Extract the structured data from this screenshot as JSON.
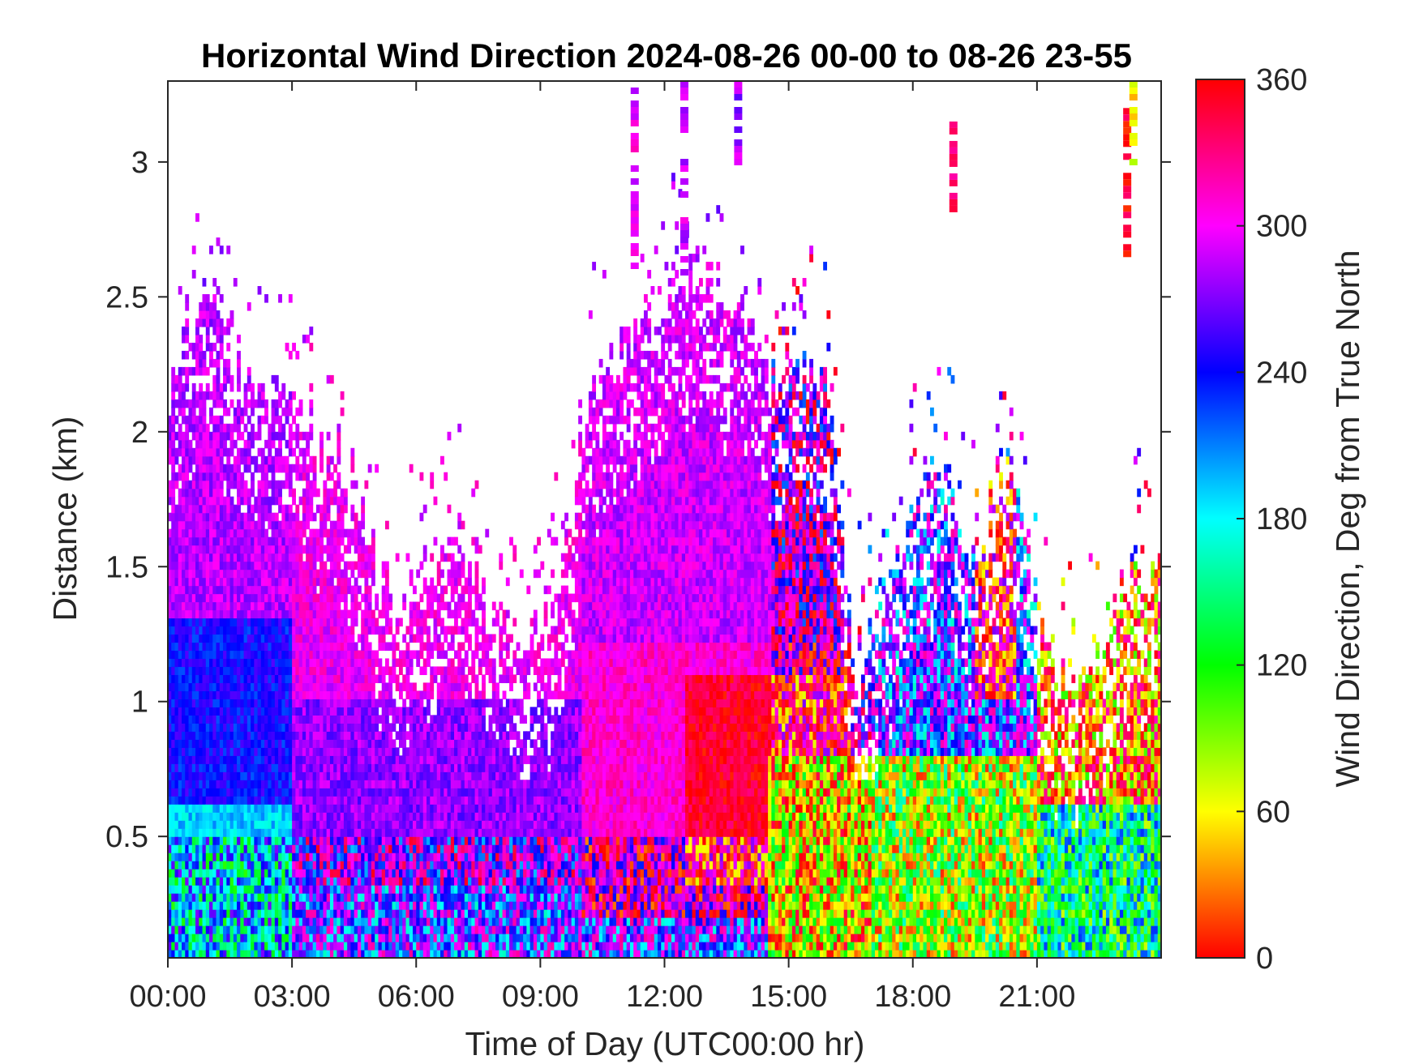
{
  "chart_data": {
    "type": "heatmap",
    "title": "Horizontal Wind Direction 2024-08-26 00-00 to 08-26 23-55",
    "xlabel": "Time of Day (UTC00:00 hr)",
    "ylabel": "Distance (km)",
    "x_ticks": [
      "00:00",
      "03:00",
      "06:00",
      "09:00",
      "12:00",
      "15:00",
      "18:00",
      "21:00"
    ],
    "y_ticks": [
      "0.5",
      "1",
      "1.5",
      "2",
      "2.5",
      "3"
    ],
    "xlim_hours": [
      0,
      24
    ],
    "ylim_km": [
      0.05,
      3.3
    ],
    "grid": false,
    "colorbar": {
      "label": "Wind Direction, Deg from True North",
      "ticks": [
        "0",
        "60",
        "120",
        "180",
        "240",
        "300",
        "360"
      ],
      "range": [
        0,
        360
      ],
      "placement": "right",
      "stops": [
        "#ff0000",
        "#ffff00",
        "#00ff00",
        "#00ffff",
        "#0000ff",
        "#ff00ff",
        "#ff0000"
      ]
    },
    "data_top_km": [
      {
        "hour": 0.0,
        "top": 2.2
      },
      {
        "hour": 0.5,
        "top": 2.4
      },
      {
        "hour": 1.0,
        "top": 2.5
      },
      {
        "hour": 1.5,
        "top": 2.3
      },
      {
        "hour": 2.0,
        "top": 2.2
      },
      {
        "hour": 2.5,
        "top": 2.1
      },
      {
        "hour": 3.0,
        "top": 2.05
      },
      {
        "hour": 3.5,
        "top": 2.0
      },
      {
        "hour": 4.0,
        "top": 1.95
      },
      {
        "hour": 4.5,
        "top": 1.8
      },
      {
        "hour": 5.0,
        "top": 1.5
      },
      {
        "hour": 5.5,
        "top": 1.3
      },
      {
        "hour": 6.0,
        "top": 1.4
      },
      {
        "hour": 6.5,
        "top": 1.5
      },
      {
        "hour": 7.0,
        "top": 1.6
      },
      {
        "hour": 7.5,
        "top": 1.4
      },
      {
        "hour": 8.0,
        "top": 1.3
      },
      {
        "hour": 8.5,
        "top": 1.2
      },
      {
        "hour": 9.0,
        "top": 1.3
      },
      {
        "hour": 9.5,
        "top": 1.4
      },
      {
        "hour": 10.0,
        "top": 2.1
      },
      {
        "hour": 10.5,
        "top": 2.25
      },
      {
        "hour": 11.0,
        "top": 2.3
      },
      {
        "hour": 11.5,
        "top": 2.45
      },
      {
        "hour": 12.0,
        "top": 2.5
      },
      {
        "hour": 12.5,
        "top": 2.6
      },
      {
        "hour": 13.0,
        "top": 2.55
      },
      {
        "hour": 13.5,
        "top": 2.45
      },
      {
        "hour": 14.0,
        "top": 2.35
      },
      {
        "hour": 14.5,
        "top": 2.25
      },
      {
        "hour": 15.0,
        "top": 2.2
      },
      {
        "hour": 15.5,
        "top": 2.2
      },
      {
        "hour": 16.0,
        "top": 2.15
      },
      {
        "hour": 16.5,
        "top": 1.2
      },
      {
        "hour": 17.0,
        "top": 1.2
      },
      {
        "hour": 17.5,
        "top": 1.5
      },
      {
        "hour": 18.0,
        "top": 1.7
      },
      {
        "hour": 18.5,
        "top": 1.85
      },
      {
        "hour": 19.0,
        "top": 1.75
      },
      {
        "hour": 19.5,
        "top": 1.5
      },
      {
        "hour": 20.0,
        "top": 1.75
      },
      {
        "hour": 20.5,
        "top": 1.85
      },
      {
        "hour": 21.0,
        "top": 1.3
      },
      {
        "hour": 21.5,
        "top": 1.1
      },
      {
        "hour": 22.0,
        "top": 1.05
      },
      {
        "hour": 22.5,
        "top": 1.2
      },
      {
        "hour": 23.0,
        "top": 1.4
      },
      {
        "hour": 23.5,
        "top": 1.5
      },
      {
        "hour": 24.0,
        "top": 1.5
      }
    ],
    "regimes": [
      {
        "hours": [
          0,
          3
        ],
        "altitude_km": [
          0.05,
          0.6
        ],
        "direction_deg": 190,
        "note_ref": "near-surface cyan/green"
      },
      {
        "hours": [
          0,
          3
        ],
        "altitude_km": [
          0.6,
          1.3
        ],
        "direction_deg": 240
      },
      {
        "hours": [
          0,
          3
        ],
        "altitude_km": [
          1.3,
          2.5
        ],
        "direction_deg": 285
      },
      {
        "hours": [
          3,
          10
        ],
        "altitude_km": [
          0.05,
          0.3
        ],
        "direction_deg": 245
      },
      {
        "hours": [
          3,
          10
        ],
        "altitude_km": [
          0.3,
          1.0
        ],
        "direction_deg": 275
      },
      {
        "hours": [
          3,
          10
        ],
        "altitude_km": [
          1.0,
          2.3
        ],
        "direction_deg": 300
      },
      {
        "hours": [
          10,
          16.5
        ],
        "altitude_km": [
          0.05,
          0.2
        ],
        "direction_deg": 250
      },
      {
        "hours": [
          10,
          16.5
        ],
        "altitude_km": [
          0.2,
          1.2
        ],
        "direction_deg": 310
      },
      {
        "hours": [
          10,
          16.5
        ],
        "altitude_km": [
          1.2,
          2.6
        ],
        "direction_deg": 290
      },
      {
        "hours": [
          12.5,
          16.5
        ],
        "altitude_km": [
          0.3,
          1.1
        ],
        "direction_deg": 350
      },
      {
        "hours": [
          14.5,
          17
        ],
        "altitude_km": [
          0.05,
          0.8
        ],
        "direction_deg": 60
      },
      {
        "hours": [
          17,
          21
        ],
        "altitude_km": [
          0.05,
          0.8
        ],
        "direction_deg": 90
      },
      {
        "hours": [
          17,
          21
        ],
        "altitude_km": [
          0.8,
          1.9
        ],
        "direction_deg": 245
      },
      {
        "hours": [
          19.5,
          20.5
        ],
        "altitude_km": [
          1.0,
          1.9
        ],
        "direction_deg": 345
      },
      {
        "hours": [
          21,
          24
        ],
        "altitude_km": [
          0.05,
          0.6
        ],
        "direction_deg": 150
      },
      {
        "hours": [
          21,
          24
        ],
        "altitude_km": [
          0.6,
          1.5
        ],
        "direction_deg": 30
      }
    ],
    "isolated_columns": [
      {
        "hour": 11.3,
        "altitude_km": [
          2.6,
          3.3
        ],
        "direction_deg": 300
      },
      {
        "hour": 12.5,
        "altitude_km": [
          2.6,
          3.3
        ],
        "direction_deg": 290
      },
      {
        "hour": 13.8,
        "altitude_km": [
          3.0,
          3.3
        ],
        "direction_deg": 280
      },
      {
        "hour": 19.0,
        "altitude_km": [
          2.8,
          3.15
        ],
        "direction_deg": 340
      },
      {
        "hour": 23.2,
        "altitude_km": [
          2.65,
          3.2
        ],
        "direction_deg": 355
      },
      {
        "hour": 23.35,
        "altitude_km": [
          3.0,
          3.3
        ],
        "direction_deg": 60
      }
    ]
  }
}
